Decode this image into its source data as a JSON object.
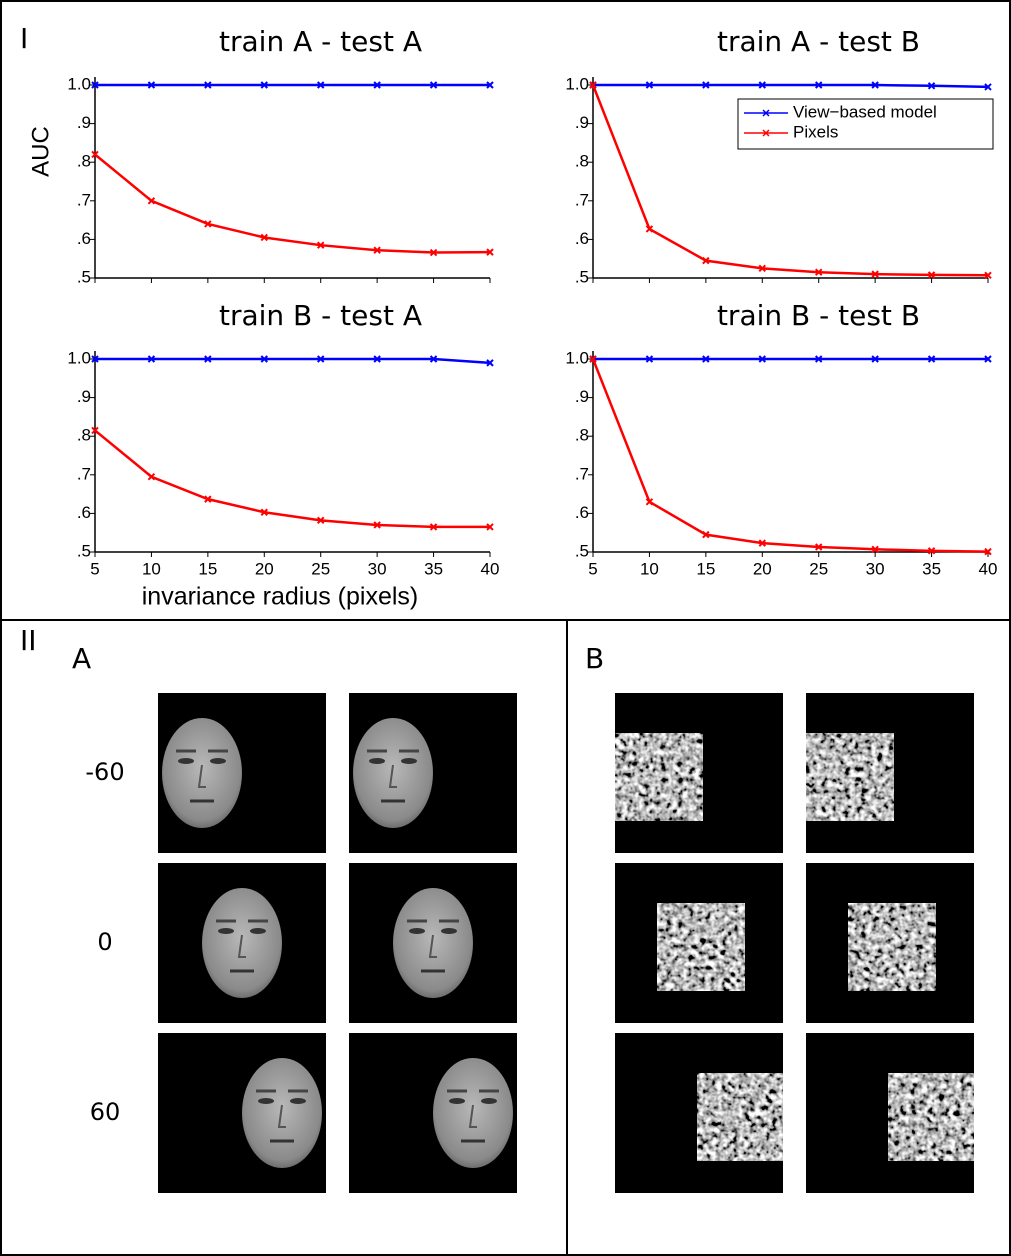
{
  "panel_labels": {
    "I": "I",
    "II": "II",
    "A": "A",
    "B": "B"
  },
  "row_labels": [
    "-60",
    "0",
    "60"
  ],
  "chart_data": [
    {
      "type": "line",
      "title": "train A - test A",
      "ylabel": "AUC",
      "x": [
        5,
        10,
        15,
        20,
        25,
        30,
        35,
        40
      ],
      "xlim": [
        5,
        40
      ],
      "ylim": [
        0.5,
        1.0
      ],
      "yticks": [
        {
          "value": 0.5,
          "label": ".5"
        },
        {
          "value": 0.6,
          "label": ".6"
        },
        {
          "value": 0.7,
          "label": ".7"
        },
        {
          "value": 0.8,
          "label": ".8"
        },
        {
          "value": 0.9,
          "label": ".9"
        },
        {
          "value": 1.0,
          "label": "1.0"
        }
      ],
      "series": [
        {
          "color": "#0000ff",
          "values": [
            1.0,
            1.0,
            1.0,
            1.0,
            1.0,
            1.0,
            1.0,
            1.0
          ]
        },
        {
          "color": "#ff0000",
          "values": [
            0.82,
            0.7,
            0.64,
            0.605,
            0.585,
            0.572,
            0.566,
            0.567
          ]
        }
      ]
    },
    {
      "type": "line",
      "title": "train A - test B",
      "legend": "upper right",
      "x": [
        5,
        10,
        15,
        20,
        25,
        30,
        35,
        40
      ],
      "xlim": [
        5,
        40
      ],
      "ylim": [
        0.5,
        1.0
      ],
      "yticks": [
        {
          "value": 0.5,
          "label": ".5"
        },
        {
          "value": 0.6,
          "label": ".6"
        },
        {
          "value": 0.7,
          "label": ".7"
        },
        {
          "value": 0.8,
          "label": ".8"
        },
        {
          "value": 0.9,
          "label": ".9"
        },
        {
          "value": 1.0,
          "label": "1.0"
        }
      ],
      "series": [
        {
          "name": "View−based model",
          "color": "#0000ff",
          "values": [
            1.0,
            1.0,
            1.0,
            1.0,
            1.0,
            1.0,
            0.998,
            0.995
          ]
        },
        {
          "name": "Pixels",
          "color": "#ff0000",
          "values": [
            1.0,
            0.627,
            0.545,
            0.525,
            0.515,
            0.51,
            0.508,
            0.507
          ]
        }
      ]
    },
    {
      "type": "line",
      "title": "train B - test A",
      "xlabel": "invariance radius (pixels)",
      "x": [
        5,
        10,
        15,
        20,
        25,
        30,
        35,
        40
      ],
      "xlim": [
        5,
        40
      ],
      "xticks": [
        5,
        10,
        15,
        20,
        25,
        30,
        35,
        40
      ],
      "ylim": [
        0.5,
        1.0
      ],
      "yticks": [
        {
          "value": 0.5,
          "label": ".5"
        },
        {
          "value": 0.6,
          "label": ".6"
        },
        {
          "value": 0.7,
          "label": ".7"
        },
        {
          "value": 0.8,
          "label": ".8"
        },
        {
          "value": 0.9,
          "label": ".9"
        },
        {
          "value": 1.0,
          "label": "1.0"
        }
      ],
      "series": [
        {
          "color": "#0000ff",
          "values": [
            1.0,
            1.0,
            1.0,
            1.0,
            1.0,
            1.0,
            1.0,
            0.99
          ]
        },
        {
          "color": "#ff0000",
          "values": [
            0.815,
            0.695,
            0.637,
            0.603,
            0.582,
            0.57,
            0.565,
            0.565
          ]
        }
      ]
    },
    {
      "type": "line",
      "title": "train B - test B",
      "x": [
        5,
        10,
        15,
        20,
        25,
        30,
        35,
        40
      ],
      "xlim": [
        5,
        40
      ],
      "xticks": [
        5,
        10,
        15,
        20,
        25,
        30,
        35,
        40
      ],
      "ylim": [
        0.5,
        1.0
      ],
      "yticks": [
        {
          "value": 0.5,
          "label": ".5"
        },
        {
          "value": 0.6,
          "label": ".6"
        },
        {
          "value": 0.7,
          "label": ".7"
        },
        {
          "value": 0.8,
          "label": ".8"
        },
        {
          "value": 0.9,
          "label": ".9"
        },
        {
          "value": 1.0,
          "label": "1.0"
        }
      ],
      "series": [
        {
          "color": "#0000ff",
          "values": [
            1.0,
            1.0,
            1.0,
            1.0,
            1.0,
            1.0,
            1.0,
            1.0
          ]
        },
        {
          "color": "#ff0000",
          "values": [
            1.0,
            0.63,
            0.545,
            0.523,
            0.513,
            0.507,
            0.503,
            0.501
          ]
        }
      ]
    }
  ]
}
